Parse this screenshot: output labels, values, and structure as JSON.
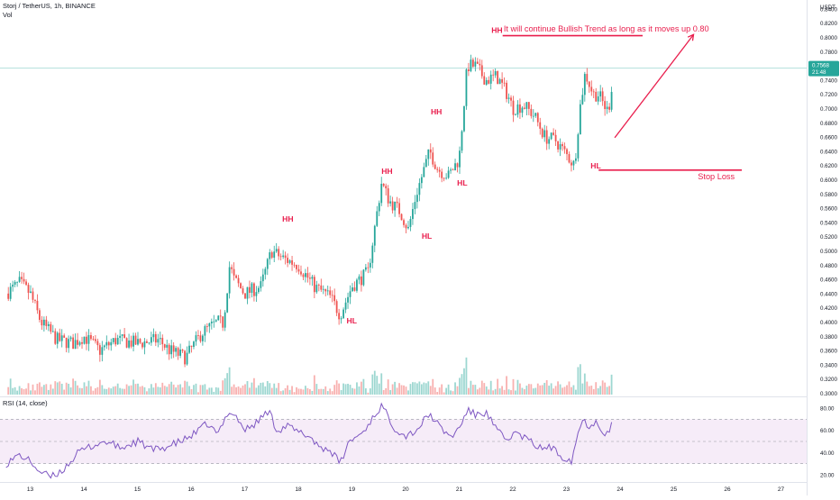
{
  "header": {
    "symbol_line": "Storj / TetherUS, 1h, BINANCE",
    "volume_label": "Vol",
    "rsi_label": "RSI (14, close)"
  },
  "price_badge": {
    "price": "0.7568",
    "countdown": "21:48",
    "color": "#26a69a"
  },
  "colors": {
    "up": "#26a69a",
    "down": "#ef5350",
    "rsi_line": "#7e57c2",
    "rsi_band": "#f3e5f5",
    "annotation": "#e91e4d",
    "price_line": "#b2dfdb"
  },
  "chart_data": [
    {
      "type": "candlestick",
      "title": "",
      "y_axis_unit": "USDT",
      "x_ticks": [
        "13",
        "14",
        "15",
        "16",
        "17",
        "18",
        "19",
        "20",
        "21",
        "22",
        "23",
        "24",
        "25",
        "26",
        "27"
      ],
      "y_ticks": [
        "0.8400",
        "0.8200",
        "0.8000",
        "0.7800",
        "0.7600",
        "0.7400",
        "0.7200",
        "0.7000",
        "0.6800",
        "0.6600",
        "0.6400",
        "0.6200",
        "0.6000",
        "0.5800",
        "0.5600",
        "0.5400",
        "0.5200",
        "0.5000",
        "0.4800",
        "0.4600",
        "0.4400",
        "0.4200",
        "0.4000",
        "0.3800",
        "0.3600",
        "0.3400",
        "0.3200",
        "0.3000"
      ],
      "ylim": [
        0.2955,
        0.8475
      ],
      "xlim_days": [
        12.55,
        27.3
      ],
      "last_price": 0.7568,
      "price_path": [
        [
          12.55,
          0.44
        ],
        [
          12.8,
          0.455
        ],
        [
          13.0,
          0.44
        ],
        [
          13.2,
          0.4
        ],
        [
          13.5,
          0.375
        ],
        [
          13.8,
          0.37
        ],
        [
          14.0,
          0.38
        ],
        [
          14.3,
          0.36
        ],
        [
          14.6,
          0.375
        ],
        [
          15.0,
          0.37
        ],
        [
          15.4,
          0.375
        ],
        [
          15.6,
          0.36
        ],
        [
          15.9,
          0.35
        ],
        [
          16.2,
          0.385
        ],
        [
          16.5,
          0.4
        ],
        [
          16.6,
          0.398
        ],
        [
          16.72,
          0.48
        ],
        [
          16.8,
          0.46
        ],
        [
          17.0,
          0.44
        ],
        [
          17.3,
          0.45
        ],
        [
          17.5,
          0.5
        ],
        [
          17.7,
          0.49
        ],
        [
          18.0,
          0.48
        ],
        [
          18.3,
          0.45
        ],
        [
          18.6,
          0.435
        ],
        [
          18.78,
          0.41
        ],
        [
          19.0,
          0.45
        ],
        [
          19.3,
          0.47
        ],
        [
          19.55,
          0.595
        ],
        [
          19.7,
          0.57
        ],
        [
          19.9,
          0.555
        ],
        [
          20.05,
          0.53
        ],
        [
          20.2,
          0.58
        ],
        [
          20.45,
          0.64
        ],
        [
          20.6,
          0.615
        ],
        [
          20.8,
          0.605
        ],
        [
          21.0,
          0.63
        ],
        [
          21.15,
          0.76
        ],
        [
          21.3,
          0.76
        ],
        [
          21.5,
          0.74
        ],
        [
          21.7,
          0.745
        ],
        [
          21.9,
          0.72
        ],
        [
          22.0,
          0.7
        ],
        [
          22.2,
          0.705
        ],
        [
          22.4,
          0.69
        ],
        [
          22.6,
          0.66
        ],
        [
          22.8,
          0.655
        ],
        [
          23.0,
          0.635
        ],
        [
          23.15,
          0.62
        ],
        [
          23.25,
          0.7
        ],
        [
          23.35,
          0.75
        ],
        [
          23.5,
          0.72
        ],
        [
          23.6,
          0.72
        ],
        [
          23.7,
          0.705
        ],
        [
          23.78,
          0.695
        ],
        [
          23.85,
          0.735
        ],
        [
          23.88,
          0.7568
        ]
      ],
      "annotations": [
        {
          "text": "HH",
          "x": 17.7,
          "y": 0.541
        },
        {
          "text": "HL",
          "x": 18.9,
          "y": 0.398
        },
        {
          "text": "HH",
          "x": 19.55,
          "y": 0.608
        },
        {
          "text": "HL",
          "x": 20.3,
          "y": 0.517
        },
        {
          "text": "HH",
          "x": 20.47,
          "y": 0.692
        },
        {
          "text": "HL",
          "x": 20.96,
          "y": 0.592
        },
        {
          "text": "HH",
          "x": 21.6,
          "y": 0.8065
        },
        {
          "text": "HL",
          "x": 23.45,
          "y": 0.6155
        },
        {
          "text": "It will continue Bullish Trend as long as it moves up 0.80",
          "x": 21.83,
          "y": 0.8085
        },
        {
          "text": "Stop Loss",
          "x": 25.45,
          "y": 0.6005
        }
      ],
      "target_line": {
        "x1": 21.81,
        "x2": 24.42,
        "y": 0.8025
      },
      "stop_line": {
        "x1": 23.6,
        "x2": 26.27,
        "y": 0.6135
      },
      "arrow": {
        "from": [
          23.9,
          0.659
        ],
        "to": [
          25.37,
          0.804
        ]
      }
    },
    {
      "type": "area",
      "title": "",
      "series_label": "RSI (14, close)",
      "y_ticks": [
        "80.00",
        "60.00",
        "40.00",
        "20.00"
      ],
      "ylim": [
        16,
        84
      ],
      "band": [
        30,
        70
      ],
      "midline": 50,
      "rsi_path": [
        [
          12.55,
          30
        ],
        [
          12.8,
          38
        ],
        [
          13.0,
          32
        ],
        [
          13.2,
          22
        ],
        [
          13.4,
          18
        ],
        [
          13.6,
          24
        ],
        [
          13.9,
          40
        ],
        [
          14.1,
          45
        ],
        [
          14.4,
          50
        ],
        [
          14.7,
          44
        ],
        [
          15.0,
          50
        ],
        [
          15.3,
          42
        ],
        [
          15.6,
          46
        ],
        [
          15.9,
          52
        ],
        [
          16.1,
          58
        ],
        [
          16.3,
          66
        ],
        [
          16.5,
          56
        ],
        [
          16.7,
          78
        ],
        [
          16.85,
          72
        ],
        [
          17.0,
          60
        ],
        [
          17.2,
          66
        ],
        [
          17.45,
          78
        ],
        [
          17.6,
          60
        ],
        [
          17.8,
          64
        ],
        [
          18.0,
          58
        ],
        [
          18.2,
          55
        ],
        [
          18.4,
          45
        ],
        [
          18.6,
          42
        ],
        [
          18.78,
          30
        ],
        [
          18.95,
          50
        ],
        [
          19.2,
          58
        ],
        [
          19.4,
          72
        ],
        [
          19.55,
          82
        ],
        [
          19.8,
          62
        ],
        [
          20.0,
          55
        ],
        [
          20.2,
          60
        ],
        [
          20.45,
          75
        ],
        [
          20.65,
          62
        ],
        [
          20.85,
          54
        ],
        [
          21.0,
          62
        ],
        [
          21.15,
          78
        ],
        [
          21.3,
          74
        ],
        [
          21.5,
          76
        ],
        [
          21.7,
          60
        ],
        [
          21.9,
          50
        ],
        [
          22.0,
          58
        ],
        [
          22.2,
          54
        ],
        [
          22.5,
          44
        ],
        [
          22.7,
          45
        ],
        [
          22.9,
          37
        ],
        [
          23.1,
          33
        ],
        [
          23.2,
          55
        ],
        [
          23.3,
          70
        ],
        [
          23.4,
          64
        ],
        [
          23.55,
          68
        ],
        [
          23.7,
          58
        ],
        [
          23.8,
          60
        ],
        [
          23.88,
          70
        ]
      ]
    }
  ]
}
